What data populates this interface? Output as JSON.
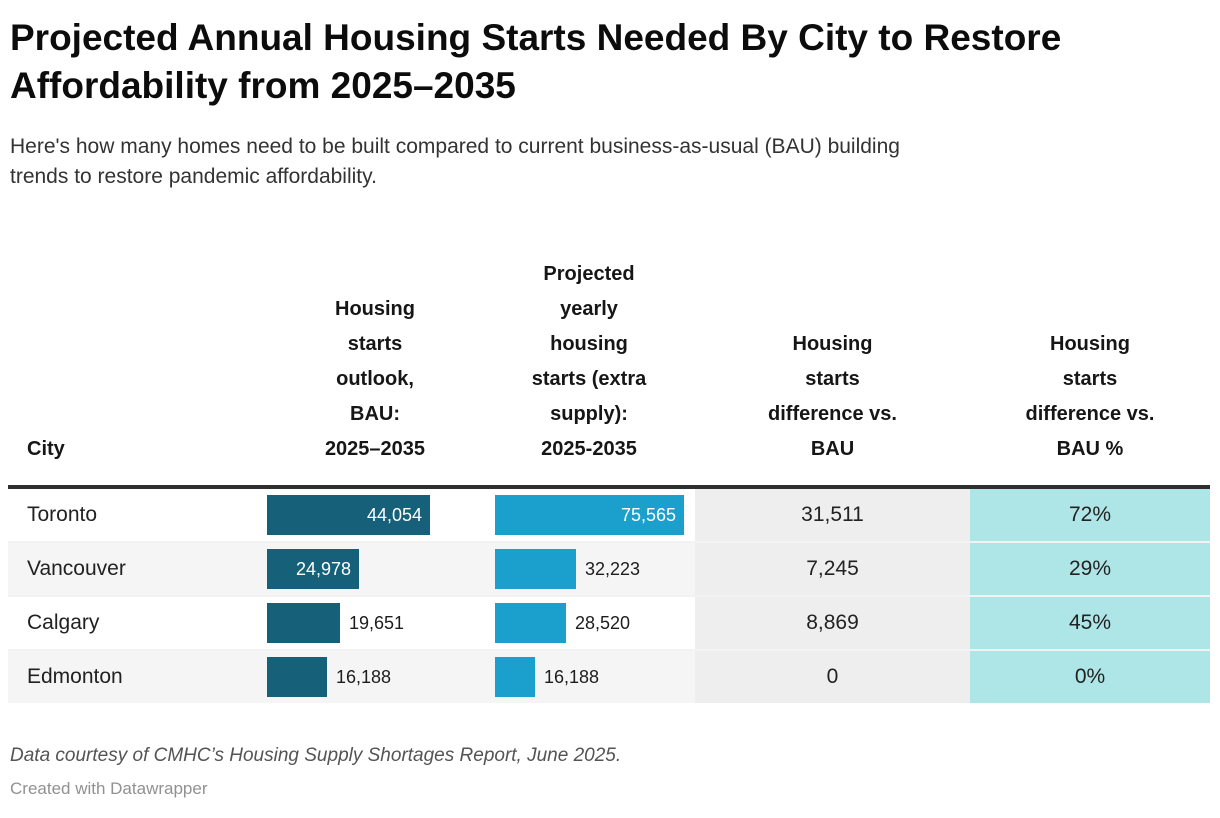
{
  "header": {
    "title_line1": "Projected Annual Housing Starts Needed By City to Restore",
    "title_line2": "Affordability from 2025–2035",
    "subtitle_line1": "Here's how many homes need to be built compared to current business-as-usual (BAU) building",
    "subtitle_line2": "trends to restore pandemic affordability."
  },
  "table": {
    "columns": [
      {
        "key": "city",
        "label": "City",
        "label_lines": [
          "City"
        ]
      },
      {
        "key": "bau",
        "label": "Housing starts outlook, BAU: 2025–2035",
        "label_lines": [
          "Housing",
          "starts",
          "outlook,",
          "BAU:",
          "2025–2035"
        ]
      },
      {
        "key": "projected",
        "label": "Projected yearly housing starts (extra supply): 2025-2035",
        "label_lines": [
          "Projected",
          "yearly",
          "housing",
          "starts (extra",
          "supply):",
          "2025-2035"
        ]
      },
      {
        "key": "diff",
        "label": "Housing starts difference vs. BAU",
        "label_lines": [
          "Housing",
          "starts",
          "difference vs.",
          "BAU"
        ]
      },
      {
        "key": "pct",
        "label": "Housing starts difference vs. BAU %",
        "label_lines": [
          "Housing",
          "starts",
          "difference vs.",
          "BAU %"
        ]
      }
    ],
    "rows": [
      {
        "city": "Toronto",
        "bau_value": 44054,
        "bau_label": "44,054",
        "projected_value": 75565,
        "projected_label": "75,565",
        "diff_label": "31,511",
        "pct_label": "72%"
      },
      {
        "city": "Vancouver",
        "bau_value": 24978,
        "bau_label": "24,978",
        "projected_value": 32223,
        "projected_label": "32,223",
        "diff_label": "7,245",
        "pct_label": "29%"
      },
      {
        "city": "Calgary",
        "bau_value": 19651,
        "bau_label": "19,651",
        "projected_value": 28520,
        "projected_label": "28,520",
        "diff_label": "8,869",
        "pct_label": "45%"
      },
      {
        "city": "Edmonton",
        "bau_value": 16188,
        "bau_label": "16,188",
        "projected_value": 16188,
        "projected_label": "16,188",
        "diff_label": "0",
        "pct_label": "0%"
      }
    ]
  },
  "footer": {
    "note": "Data courtesy of CMHC’s Housing Supply Shortages Report, June 2025.",
    "credit": "Created with Datawrapper"
  },
  "colors": {
    "bau_bar": "#16607a",
    "projected_bar": "#1ba0ce",
    "diff_column_bg": "#eeeeee",
    "pct_column_bg": "#aee6e8",
    "row_stripe": "#f5f5f5",
    "header_rule": "#2f2f2f"
  },
  "chart_data": {
    "type": "table",
    "title": "Projected Annual Housing Starts Needed By City to Restore Affordability from 2025–2035",
    "subtitle": "Here's how many homes need to be built compared to current business-as-usual (BAU) building trends to restore pandemic affordability.",
    "categories": [
      "Toronto",
      "Vancouver",
      "Calgary",
      "Edmonton"
    ],
    "series": [
      {
        "name": "Housing starts outlook, BAU: 2025–2035",
        "values": [
          44054,
          24978,
          19651,
          16188
        ],
        "style": "bar",
        "color": "#16607a"
      },
      {
        "name": "Projected yearly housing starts (extra supply): 2025-2035",
        "values": [
          75565,
          32223,
          28520,
          16188
        ],
        "style": "bar",
        "color": "#1ba0ce"
      },
      {
        "name": "Housing starts difference vs. BAU",
        "values": [
          31511,
          7245,
          8869,
          0
        ],
        "style": "number"
      },
      {
        "name": "Housing starts difference vs. BAU %",
        "values": [
          72,
          29,
          45,
          0
        ],
        "style": "percent"
      }
    ],
    "notes": "Each bar column is scaled independently to its own maximum value.",
    "source": "Data courtesy of CMHC’s Housing Supply Shortages Report, June 2025."
  }
}
